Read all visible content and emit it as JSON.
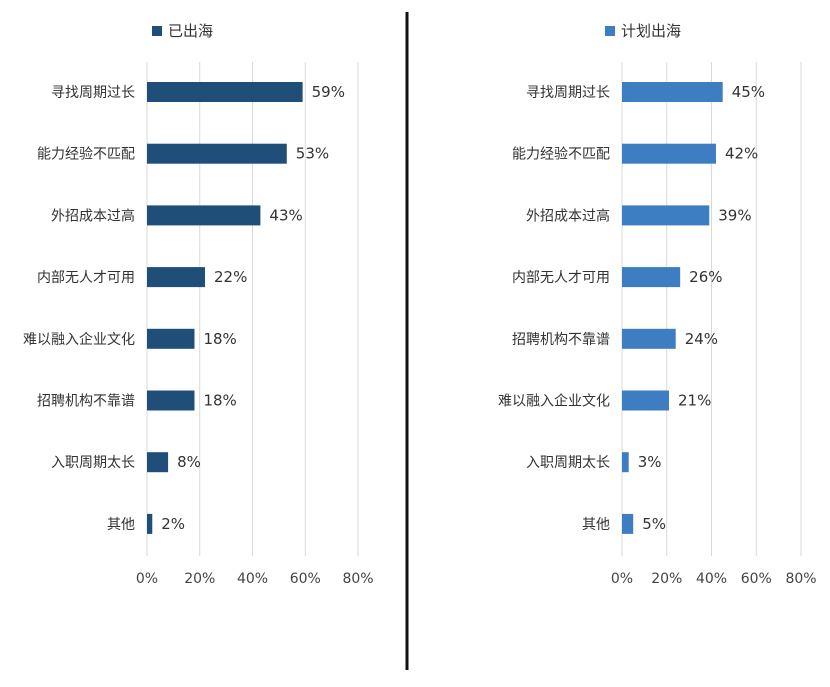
{
  "chart_data": [
    {
      "type": "bar",
      "orientation": "horizontal",
      "legend": "已出海",
      "color": "#1f4e79",
      "categories": [
        "寻找周期过长",
        "能力经验不匹配",
        "外招成本过高",
        "内部无人才可用",
        "难以融入企业文化",
        "招聘机构不靠谱",
        "入职周期太长",
        "其他"
      ],
      "values": [
        59,
        53,
        43,
        22,
        18,
        18,
        8,
        2
      ],
      "value_labels": [
        "59%",
        "53%",
        "43%",
        "22%",
        "18%",
        "18%",
        "8%",
        "2%"
      ],
      "xlim": [
        0,
        80
      ],
      "ticks": [
        "0%",
        "20%",
        "40%",
        "60%",
        "80%"
      ],
      "grid": true
    },
    {
      "type": "bar",
      "orientation": "horizontal",
      "legend": "计划出海",
      "color": "#3d7dc1",
      "categories": [
        "寻找周期过长",
        "能力经验不匹配",
        "外招成本过高",
        "内部无人才可用",
        "招聘机构不靠谱",
        "难以融入企业文化",
        "入职周期太长",
        "其他"
      ],
      "values": [
        45,
        42,
        39,
        26,
        24,
        21,
        3,
        5
      ],
      "value_labels": [
        "45%",
        "42%",
        "39%",
        "26%",
        "24%",
        "21%",
        "3%",
        "5%"
      ],
      "xlim": [
        0,
        80
      ],
      "ticks": [
        "0%",
        "20%",
        "40%",
        "60%",
        "80%"
      ],
      "grid": true
    }
  ],
  "divider_color": "#111111",
  "grid_color": "#d9d9d9"
}
